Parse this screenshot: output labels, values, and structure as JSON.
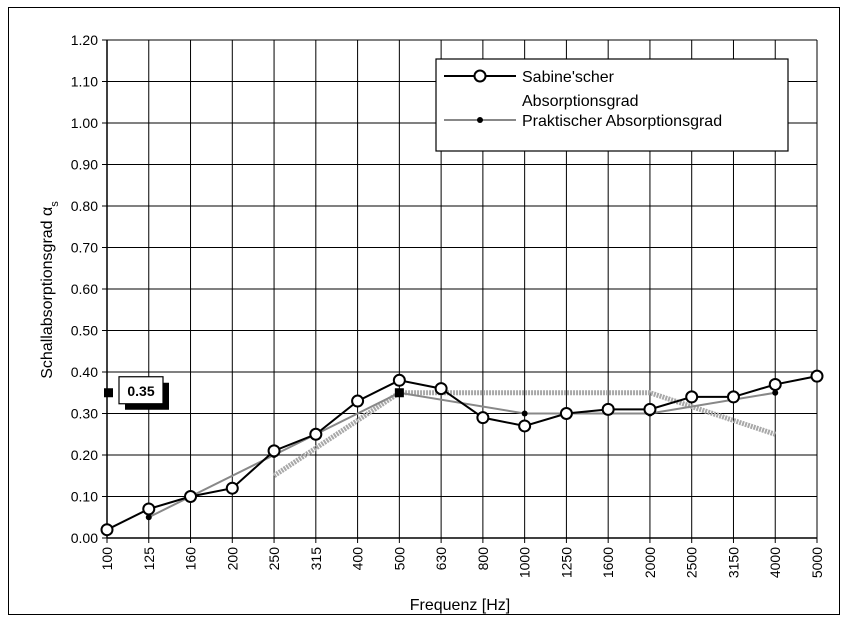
{
  "chart_data": {
    "type": "line",
    "xlabel": "Frequenz  [Hz]",
    "ylabel": "Schallabsorptionsgrad αs",
    "ylabel_main": "Schallabsorptionsgrad α",
    "ylabel_sub": "s",
    "categories": [
      "100",
      "125",
      "160",
      "200",
      "250",
      "315",
      "400",
      "500",
      "630",
      "800",
      "1000",
      "1250",
      "1600",
      "2000",
      "2500",
      "3150",
      "4000",
      "5000"
    ],
    "ylim": [
      0,
      1.2
    ],
    "yticks": [
      "0.00",
      "0.10",
      "0.20",
      "0.30",
      "0.40",
      "0.50",
      "0.60",
      "0.70",
      "0.80",
      "0.90",
      "1.00",
      "1.10",
      "1.20"
    ],
    "grid": true,
    "legend_position": "top-right",
    "series": [
      {
        "name": "Sabine'scher Absorptionsgrad",
        "legend_lines": [
          "Sabine'scher",
          "Absorptionsgrad"
        ],
        "color": "#000000",
        "marker": "open-circle",
        "values": [
          0.02,
          0.07,
          0.1,
          0.12,
          0.21,
          0.25,
          0.33,
          0.38,
          0.36,
          0.29,
          0.27,
          0.3,
          0.31,
          0.31,
          0.34,
          0.34,
          0.37,
          0.39
        ]
      },
      {
        "name": "Praktischer Absorptionsgrad",
        "legend_lines": [
          "Praktischer Absorptionsgrad"
        ],
        "color": "#888888",
        "marker": "filled-dot",
        "x": [
          "125",
          "250",
          "500",
          "1000",
          "2000",
          "4000"
        ],
        "values": [
          0.05,
          0.2,
          0.35,
          0.3,
          0.3,
          0.35
        ]
      }
    ],
    "reference_curve": {
      "color": "#a8a8a8",
      "x": [
        "250",
        "500",
        "2000",
        "4000"
      ],
      "values": [
        0.15,
        0.35,
        0.35,
        0.25
      ]
    },
    "marker_label": {
      "x": "500",
      "value": 0.35,
      "text": "0.35"
    }
  }
}
